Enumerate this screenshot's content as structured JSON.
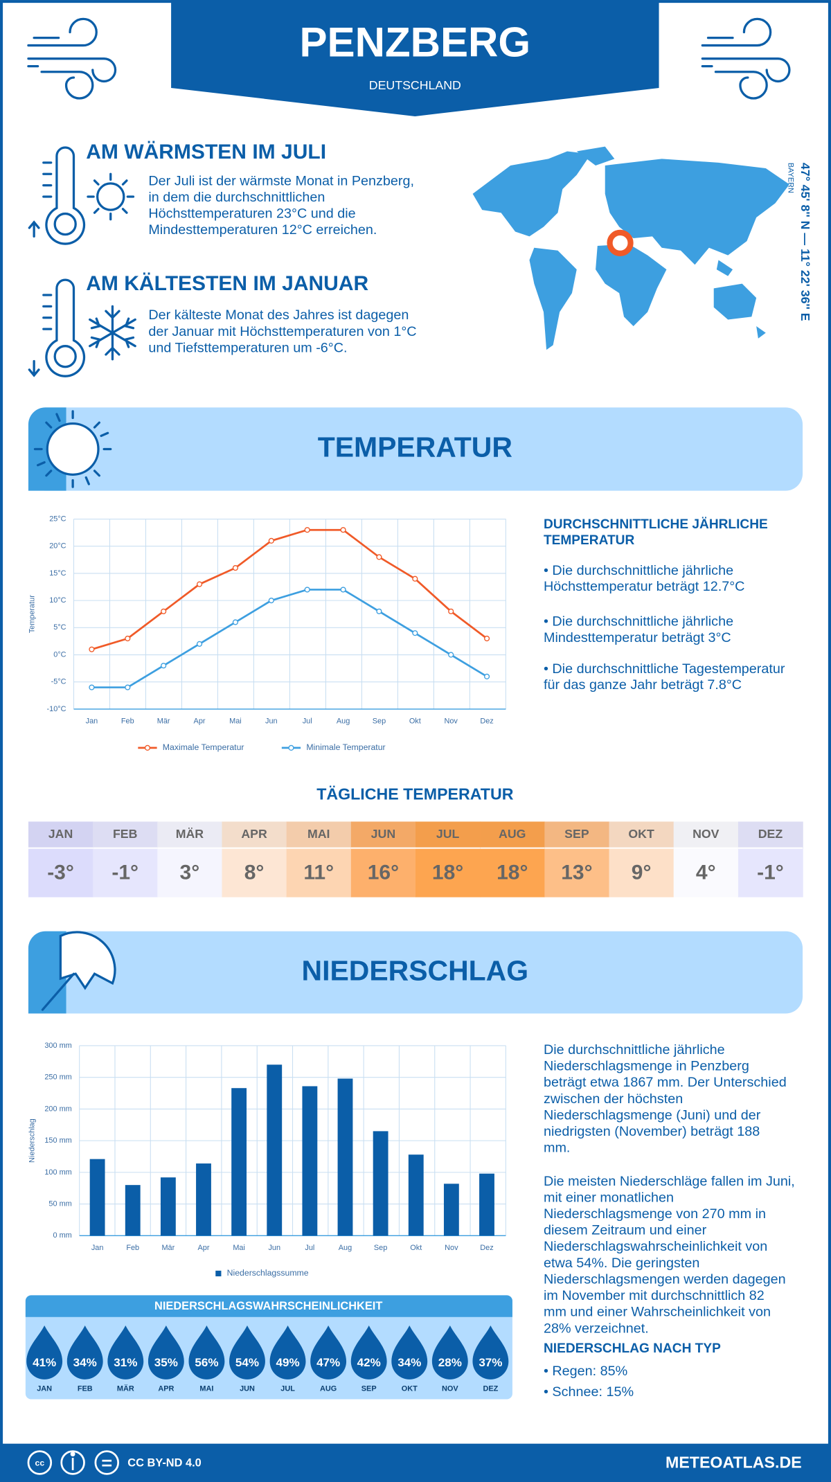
{
  "header": {
    "title": "PENZBERG",
    "subtitle": "DEUTSCHLAND"
  },
  "warmest": {
    "heading": "AM WÄRMSTEN IM JULI",
    "lines": [
      "Der Juli ist der wärmste Monat in Penzberg,",
      "in dem die durchschnittlichen",
      "Höchsttemperaturen 23°C und die",
      "Mindesttemperaturen 12°C erreichen."
    ]
  },
  "coldest": {
    "heading": "AM KÄLTESTEN IM JANUAR",
    "lines": [
      "Der kälteste Monat des Jahres ist dagegen",
      "der Januar mit Höchsttemperaturen von 1°C",
      "und Tiefsttemperaturen um -6°C."
    ]
  },
  "location": {
    "region": "BAYERN",
    "coordinates": "47° 45' 8'' N — 11° 22' 36'' E"
  },
  "temperature_section": {
    "title": "TEMPERATUR"
  },
  "chart_data": [
    {
      "type": "line",
      "y_label": "Temperatur",
      "categories": [
        "Jan",
        "Feb",
        "Mär",
        "Apr",
        "Mai",
        "Jun",
        "Jul",
        "Aug",
        "Sep",
        "Okt",
        "Nov",
        "Dez"
      ],
      "series": [
        {
          "name": "Maximale Temperatur",
          "color": "#f05a28",
          "values": [
            1,
            3,
            8,
            13,
            16,
            21,
            23,
            23,
            18,
            14,
            8,
            3
          ]
        },
        {
          "name": "Minimale Temperatur",
          "color": "#3d9fe0",
          "values": [
            -6,
            -6,
            -2,
            2,
            6,
            10,
            12,
            12,
            8,
            4,
            0,
            -4
          ]
        }
      ],
      "ylim": [
        -10,
        25
      ],
      "yticks": [
        {
          "value": -10,
          "label": "-10°C"
        },
        {
          "value": -5,
          "label": "-5°C"
        },
        {
          "value": 0,
          "label": "0°C"
        },
        {
          "value": 5,
          "label": "5°C"
        },
        {
          "value": 10,
          "label": "10°C"
        },
        {
          "value": 15,
          "label": "15°C"
        },
        {
          "value": 20,
          "label": "20°C"
        },
        {
          "value": 25,
          "label": "25°C"
        }
      ],
      "grid": true
    },
    {
      "type": "bar",
      "y_label": "Niederschlag",
      "categories": [
        "Jan",
        "Feb",
        "Mär",
        "Apr",
        "Mai",
        "Jun",
        "Jul",
        "Aug",
        "Sep",
        "Okt",
        "Nov",
        "Dez"
      ],
      "series": [
        {
          "name": "Niederschlagssumme",
          "color": "#0b5ea8",
          "values": [
            121,
            80,
            92,
            114,
            233,
            270,
            236,
            248,
            165,
            128,
            82,
            98
          ]
        }
      ],
      "ylim": [
        0,
        300
      ],
      "yticks": [
        {
          "value": 0,
          "label": "0 mm"
        },
        {
          "value": 50,
          "label": "50 mm"
        },
        {
          "value": 100,
          "label": "100 mm"
        },
        {
          "value": 150,
          "label": "150 mm"
        },
        {
          "value": 200,
          "label": "200 mm"
        },
        {
          "value": 250,
          "label": "250 mm"
        },
        {
          "value": 300,
          "label": "300 mm"
        }
      ],
      "grid": true
    }
  ],
  "annual_temperature": {
    "heading_lines": [
      "DURCHSCHNITTLICHE JÄHRLICHE",
      "TEMPERATUR"
    ],
    "bullets": [
      [
        "• Die durchschnittliche jährliche",
        "Höchsttemperatur beträgt 12.7°C"
      ],
      [
        "• Die durchschnittliche jährliche",
        "Mindesttemperatur beträgt 3°C"
      ],
      [
        "• Die durchschnittliche Tagestemperatur",
        "für das ganze Jahr beträgt 7.8°C"
      ]
    ]
  },
  "daily_temperature": {
    "title": "TÄGLICHE TEMPERATUR",
    "months": [
      "JAN",
      "FEB",
      "MÄR",
      "APR",
      "MAI",
      "JUN",
      "JUL",
      "AUG",
      "SEP",
      "OKT",
      "NOV",
      "DEZ"
    ],
    "values": [
      "-3°",
      "-1°",
      "3°",
      "8°",
      "11°",
      "16°",
      "18°",
      "18°",
      "13°",
      "9°",
      "4°",
      "-1°"
    ],
    "colors": [
      "#dcdcfc",
      "#e6e6fd",
      "#f5f5fe",
      "#fde6d4",
      "#fdd5b2",
      "#fdb06c",
      "#fda550",
      "#fda550",
      "#fdbf88",
      "#fde0c8",
      "#fafafe",
      "#e6e6fd"
    ]
  },
  "precipitation_section": {
    "title": "NIEDERSCHLAG"
  },
  "precipitation_text": {
    "paragraphs": [
      [
        "Die durchschnittliche jährliche",
        "Niederschlagsmenge in Penzberg",
        "beträgt etwa 1867 mm. Der Unterschied",
        "zwischen der höchsten",
        "Niederschlagsmenge (Juni) und der",
        "niedrigsten (November) beträgt 188",
        "mm."
      ],
      [
        "Die meisten Niederschläge fallen im Juni,",
        "mit einer monatlichen",
        "Niederschlagsmenge von 270 mm in",
        "diesem Zeitraum und einer",
        "Niederschlagswahrscheinlichkeit von",
        "etwa 54%. Die geringsten",
        "Niederschlagsmengen werden dagegen",
        "im November mit durchschnittlich 82",
        "mm und einer Wahrscheinlichkeit von",
        "28% verzeichnet."
      ]
    ],
    "type_heading": "NIEDERSCHLAG NACH TYP",
    "type_items": [
      "• Regen: 85%",
      "• Schnee: 15%"
    ]
  },
  "precipitation_probability": {
    "title": "NIEDERSCHLAGSWAHRSCHEINLICHKEIT",
    "months": [
      "JAN",
      "FEB",
      "MÄR",
      "APR",
      "MAI",
      "JUN",
      "JUL",
      "AUG",
      "SEP",
      "OKT",
      "NOV",
      "DEZ"
    ],
    "values": [
      "41%",
      "34%",
      "31%",
      "35%",
      "56%",
      "54%",
      "49%",
      "47%",
      "42%",
      "34%",
      "28%",
      "37%"
    ]
  },
  "footer": {
    "license": "CC BY-ND 4.0",
    "site": "METEOATLAS.DE"
  }
}
